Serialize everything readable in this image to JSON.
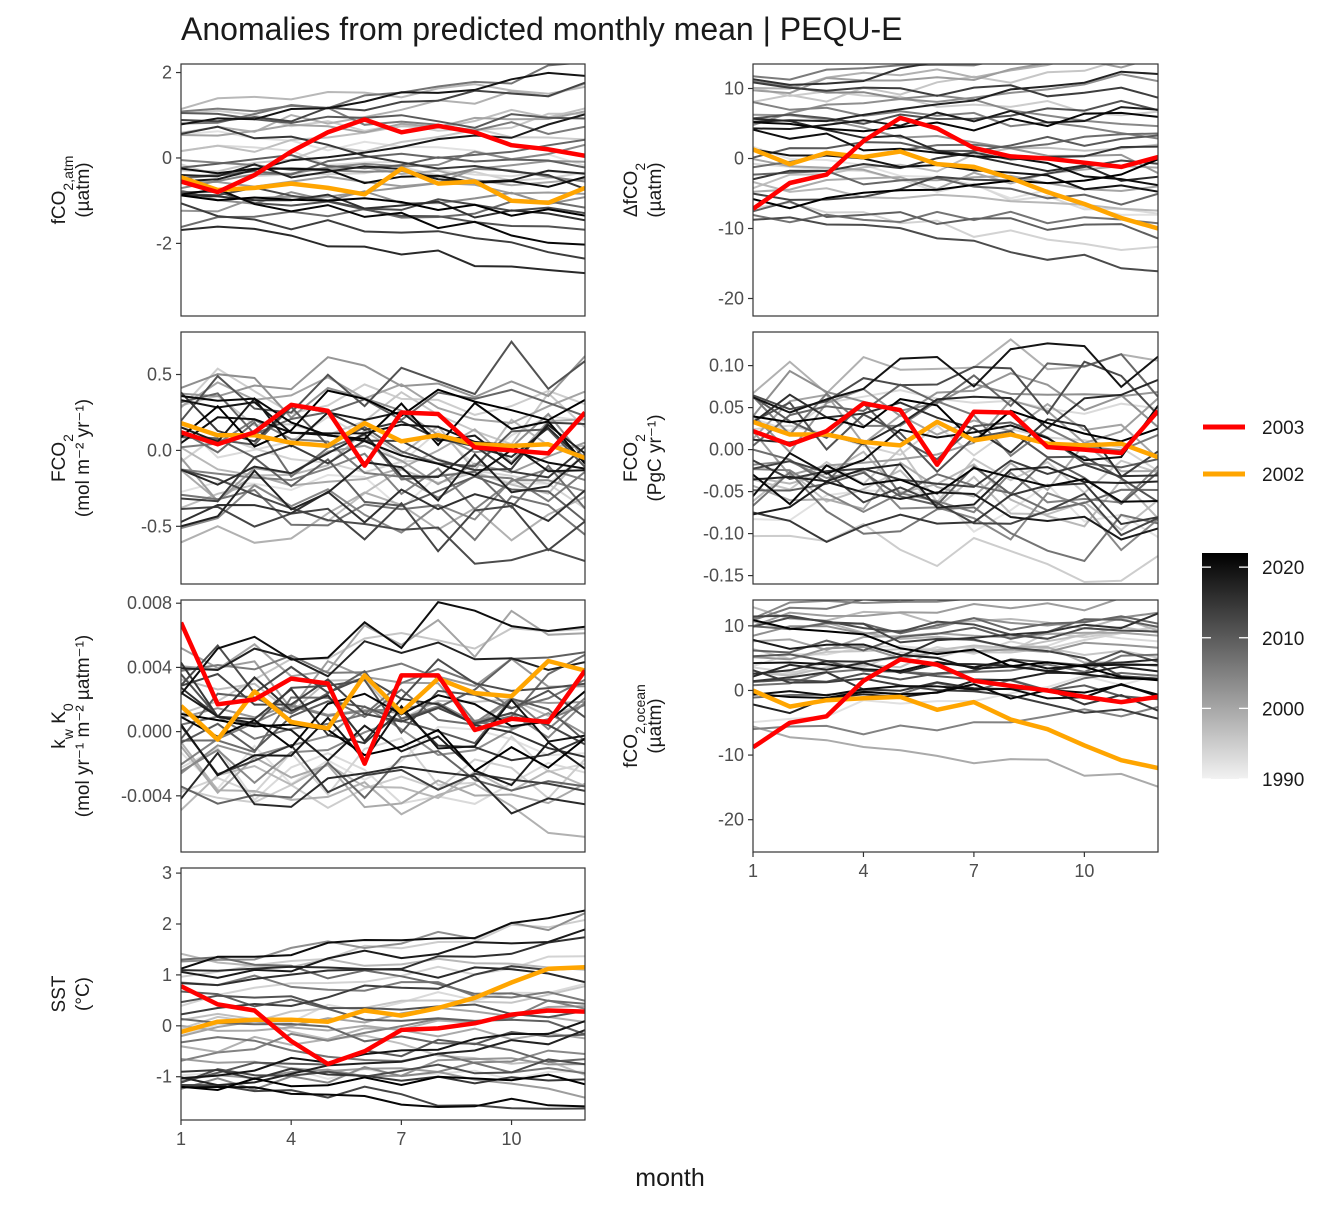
{
  "title": "Anomalies from predicted monthly mean | PEQU-E",
  "x_title": "month",
  "colors": {
    "highlight_2003": "#ff0000",
    "highlight_2002": "#ffa500",
    "background_line_light": "#d9d9d9",
    "background_line_dark": "#000000"
  },
  "legend": {
    "series": [
      {
        "name": "2003",
        "color": "#ff0000"
      },
      {
        "name": "2002",
        "color": "#ffa500"
      }
    ],
    "colorbar": {
      "title": "",
      "ticks": [
        "2020",
        "2010",
        "2000",
        "1990"
      ],
      "range": [
        1990,
        2022
      ]
    }
  },
  "chart_data": [
    {
      "type": "line",
      "panel": "fCO2_atm",
      "ylabel_main": "fCO",
      "ylabel_sub": "2,atm",
      "ylabel_unit": "(µatm)",
      "xlim": [
        1,
        12
      ],
      "ylim": [
        -3.7,
        2.2
      ],
      "x_ticks": [
        "1",
        "4",
        "7",
        "10"
      ],
      "y_ticks": [
        "2",
        "0",
        "-2"
      ],
      "series": [
        {
          "name": "2003",
          "x": [
            1,
            2,
            3,
            4,
            5,
            6,
            7,
            8,
            9,
            10,
            11,
            12
          ],
          "values": [
            -0.55,
            -0.8,
            -0.4,
            0.15,
            0.6,
            0.9,
            0.6,
            0.75,
            0.6,
            0.3,
            0.2,
            0.05
          ]
        },
        {
          "name": "2002",
          "x": [
            1,
            2,
            3,
            4,
            5,
            6,
            7,
            8,
            9,
            10,
            11,
            12
          ],
          "values": [
            -0.45,
            -0.75,
            -0.7,
            -0.6,
            -0.7,
            -0.85,
            -0.25,
            -0.6,
            -0.55,
            -1.0,
            -1.05,
            -0.7
          ]
        }
      ]
    },
    {
      "type": "line",
      "panel": "delta_fCO2",
      "ylabel_main": "ΔfCO",
      "ylabel_sub": "2",
      "ylabel_unit": "(µatm)",
      "xlim": [
        1,
        12
      ],
      "ylim": [
        -22.5,
        13.5
      ],
      "x_ticks": [
        "1",
        "4",
        "7",
        "10"
      ],
      "y_ticks": [
        "10",
        "0",
        "-10",
        "-20"
      ],
      "series": [
        {
          "name": "2003",
          "x": [
            1,
            2,
            3,
            4,
            5,
            6,
            7,
            8,
            9,
            10,
            11,
            12
          ],
          "values": [
            -7.2,
            -3.5,
            -2.3,
            2.5,
            5.8,
            4.3,
            1.5,
            0.3,
            0.0,
            -0.6,
            -1.2,
            0.2
          ]
        },
        {
          "name": "2002",
          "x": [
            1,
            2,
            3,
            4,
            5,
            6,
            7,
            8,
            9,
            10,
            11,
            12
          ],
          "values": [
            1.3,
            -0.8,
            0.8,
            0.2,
            1.0,
            -0.8,
            -1.2,
            -2.8,
            -4.8,
            -6.5,
            -8.5,
            -10.0
          ]
        }
      ]
    },
    {
      "type": "line",
      "panel": "FCO2_flux_density",
      "ylabel_main": "FCO",
      "ylabel_sub": "2",
      "ylabel_unit": "(mol m⁻² yr⁻¹)",
      "xlim": [
        1,
        12
      ],
      "ylim": [
        -0.88,
        0.78
      ],
      "x_ticks": [
        "1",
        "4",
        "7",
        "10"
      ],
      "y_ticks": [
        "0.5",
        "0.0",
        "-0.5"
      ],
      "series": [
        {
          "name": "2003",
          "x": [
            1,
            2,
            3,
            4,
            5,
            6,
            7,
            8,
            9,
            10,
            11,
            12
          ],
          "values": [
            0.12,
            0.04,
            0.12,
            0.3,
            0.26,
            -0.1,
            0.25,
            0.24,
            0.02,
            0.0,
            -0.02,
            0.25
          ]
        },
        {
          "name": "2002",
          "x": [
            1,
            2,
            3,
            4,
            5,
            6,
            7,
            8,
            9,
            10,
            11,
            12
          ],
          "values": [
            0.18,
            0.1,
            0.1,
            0.05,
            0.03,
            0.18,
            0.06,
            0.1,
            0.04,
            0.03,
            0.04,
            -0.05
          ]
        }
      ]
    },
    {
      "type": "line",
      "panel": "FCO2_integrated",
      "ylabel_main": "FCO",
      "ylabel_sub": "2",
      "ylabel_unit": "(PgC yr⁻¹)",
      "xlim": [
        1,
        12
      ],
      "ylim": [
        -0.16,
        0.14
      ],
      "x_ticks": [
        "1",
        "4",
        "7",
        "10"
      ],
      "y_ticks": [
        "0.10",
        "0.05",
        "0.00",
        "-0.05",
        "-0.10",
        "-0.15"
      ],
      "series": [
        {
          "name": "2003",
          "x": [
            1,
            2,
            3,
            4,
            5,
            6,
            7,
            8,
            9,
            10,
            11,
            12
          ],
          "values": [
            0.022,
            0.006,
            0.022,
            0.055,
            0.047,
            -0.018,
            0.045,
            0.044,
            0.003,
            0.0,
            -0.004,
            0.046
          ]
        },
        {
          "name": "2002",
          "x": [
            1,
            2,
            3,
            4,
            5,
            6,
            7,
            8,
            9,
            10,
            11,
            12
          ],
          "values": [
            0.033,
            0.018,
            0.018,
            0.009,
            0.005,
            0.033,
            0.011,
            0.018,
            0.007,
            0.005,
            0.007,
            -0.009
          ]
        }
      ]
    },
    {
      "type": "line",
      "panel": "kw_K0",
      "ylabel_main": "k",
      "ylabel_sub": "w",
      "ylabel_main2": " K",
      "ylabel_sub2": "0",
      "ylabel_unit": "(mol yr⁻¹ m⁻² µatm⁻¹)",
      "xlim": [
        1,
        12
      ],
      "ylim": [
        -0.0075,
        0.0082
      ],
      "x_ticks": [
        "1",
        "4",
        "7",
        "10"
      ],
      "y_ticks": [
        "0.008",
        "0.004",
        "0.000",
        "-0.004"
      ],
      "series": [
        {
          "name": "2003",
          "x": [
            1,
            2,
            3,
            4,
            5,
            6,
            7,
            8,
            9,
            10,
            11,
            12
          ],
          "values": [
            0.0068,
            0.0017,
            0.002,
            0.0033,
            0.003,
            -0.002,
            0.0035,
            0.0035,
            0.0001,
            0.0008,
            0.0006,
            0.0038
          ]
        },
        {
          "name": "2002",
          "x": [
            1,
            2,
            3,
            4,
            5,
            6,
            7,
            8,
            9,
            10,
            11,
            12
          ],
          "values": [
            0.0016,
            -0.0005,
            0.0025,
            0.0006,
            0.0002,
            0.0035,
            0.0012,
            0.0033,
            0.0024,
            0.0022,
            0.0044,
            0.0038
          ]
        }
      ]
    },
    {
      "type": "line",
      "panel": "fCO2_ocean",
      "ylabel_main": "fCO",
      "ylabel_sub": "2,ocean",
      "ylabel_unit": "(µatm)",
      "xlim": [
        1,
        12
      ],
      "ylim": [
        -25,
        14
      ],
      "x_ticks": [
        "1",
        "4",
        "7",
        "10"
      ],
      "y_ticks": [
        "10",
        "0",
        "-10",
        "-20"
      ],
      "series": [
        {
          "name": "2003",
          "x": [
            1,
            2,
            3,
            4,
            5,
            6,
            7,
            8,
            9,
            10,
            11,
            12
          ],
          "values": [
            -8.8,
            -5.0,
            -4.0,
            1.5,
            4.8,
            4.0,
            1.5,
            0.7,
            0.0,
            -1.0,
            -1.8,
            -1.0
          ]
        },
        {
          "name": "2002",
          "x": [
            1,
            2,
            3,
            4,
            5,
            6,
            7,
            8,
            9,
            10,
            11,
            12
          ],
          "values": [
            0.0,
            -2.5,
            -1.5,
            -1.2,
            -1.0,
            -3.0,
            -1.8,
            -4.5,
            -6.0,
            -8.5,
            -10.8,
            -12.0
          ]
        }
      ]
    },
    {
      "type": "line",
      "panel": "SST",
      "ylabel_main": "SST",
      "ylabel_sub": "",
      "ylabel_unit": "(°C)",
      "xlim": [
        1,
        12
      ],
      "ylim": [
        -1.85,
        3.1
      ],
      "x_ticks": [
        "1",
        "4",
        "7",
        "10"
      ],
      "y_ticks": [
        "3",
        "2",
        "1",
        "0",
        "-1"
      ],
      "series": [
        {
          "name": "2003",
          "x": [
            1,
            2,
            3,
            4,
            5,
            6,
            7,
            8,
            9,
            10,
            11,
            12
          ],
          "values": [
            0.78,
            0.42,
            0.3,
            -0.3,
            -0.75,
            -0.5,
            -0.08,
            -0.05,
            0.05,
            0.22,
            0.3,
            0.28
          ]
        },
        {
          "name": "2002",
          "x": [
            1,
            2,
            3,
            4,
            5,
            6,
            7,
            8,
            9,
            10,
            11,
            12
          ],
          "values": [
            -0.12,
            0.08,
            0.12,
            0.12,
            0.08,
            0.3,
            0.2,
            0.35,
            0.55,
            0.85,
            1.12,
            1.15
          ]
        }
      ]
    }
  ]
}
